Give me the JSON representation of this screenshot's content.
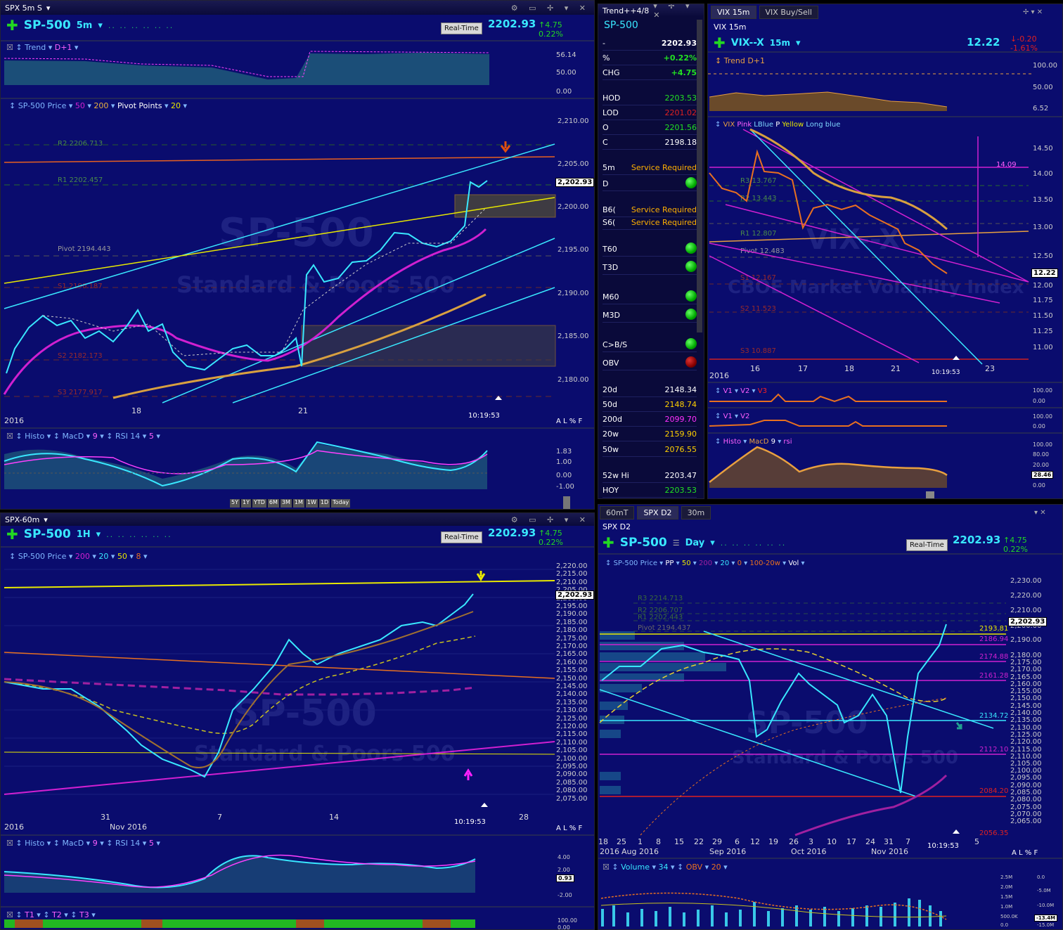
{
  "p1": {
    "title": "SPX 5m S",
    "symbol": "SP-500",
    "tf": "5m",
    "realtime": "Real-Time",
    "price": "2202.93",
    "chg": "4.75",
    "pct": "0.22%",
    "trend_label": "Trend",
    "trend_d": "D+1",
    "trend_axis": [
      "56.14",
      "50.00",
      "0.00"
    ],
    "price_label": "SP-500 Price",
    "ma1": "50",
    "ma2": "200",
    "pp": "Pivot Points",
    "ppn": "20",
    "levels": [
      "R2 2206.713",
      "R1 2202.457",
      "Pivot 2194.443",
      "S1 2190.187",
      "S2 2182.173",
      "S3 2177.917"
    ],
    "yticks": [
      "2,210.00",
      "2,205.00",
      "2,200.00",
      "2,195.00",
      "2,190.00",
      "2,185.00",
      "2,180.00"
    ],
    "pricetag": "2,202.93",
    "wm1": "SP-500",
    "wm2": "Standard & Poors 500",
    "x": [
      "18",
      "21"
    ],
    "year": "2016",
    "time": "10:19:53",
    "alpf": "A L % F",
    "ind_label": "Histo",
    "macd": "MacD",
    "macdn": "9",
    "rsi": "RSI 14",
    "rsin": "5",
    "ind_axis": [
      "1.83",
      "1.00",
      "0.00",
      "-1.00"
    ],
    "ranges": [
      "5Y",
      "1Y",
      "YTD",
      "6M",
      "3M",
      "1M",
      "1W",
      "1D",
      "Today"
    ]
  },
  "p2": {
    "title": "Trend++4/8",
    "symbol": "SP-500",
    "rows": [
      {
        "k": "-",
        "v": "2202.93",
        "c": "#fff"
      },
      {
        "k": "%",
        "v": "+0.22%",
        "c": "#22e022"
      },
      {
        "k": "CHG",
        "v": "+4.75",
        "c": "#22e022"
      },
      {
        "k": "HOD",
        "v": "2203.53",
        "c": "#22e022"
      },
      {
        "k": "LOD",
        "v": "2201.02",
        "c": "#e02020"
      },
      {
        "k": "O",
        "v": "2201.56",
        "c": "#22e022"
      },
      {
        "k": "C",
        "v": "2198.18",
        "c": "#fff"
      },
      {
        "k": "5m",
        "v": "Service Required",
        "c": "#ffb000"
      },
      {
        "k": "D",
        "v": "",
        "c": ""
      },
      {
        "k": "B6(",
        "v": "Service Required",
        "c": "#ffb000"
      },
      {
        "k": "S6(",
        "v": "Service Required",
        "c": "#ffb000"
      },
      {
        "k": "T60",
        "v": "",
        "c": ""
      },
      {
        "k": "T3D",
        "v": "",
        "c": ""
      },
      {
        "k": "M60",
        "v": "",
        "c": ""
      },
      {
        "k": "M3D",
        "v": "",
        "c": ""
      },
      {
        "k": "C>B/S",
        "v": "",
        "c": ""
      },
      {
        "k": "OBV",
        "v": "",
        "c": ""
      },
      {
        "k": "20d",
        "v": "2148.34",
        "c": "#fff"
      },
      {
        "k": "50d",
        "v": "2148.74",
        "c": "#ffd000"
      },
      {
        "k": "200d",
        "v": "2099.70",
        "c": "#ff30ff"
      },
      {
        "k": "20w",
        "v": "2159.90",
        "c": "#ffd000"
      },
      {
        "k": "50w",
        "v": "2076.55",
        "c": "#ffd000"
      },
      {
        "k": "52w Hi",
        "v": "2203.47",
        "c": "#fff"
      },
      {
        "k": "HOY",
        "v": "2203.53",
        "c": "#22e022"
      }
    ]
  },
  "p3": {
    "tab1": "VIX 15m",
    "tab2": "VIX Buy/Sell",
    "sub": "VIX 15m",
    "symbol": "VIX--X",
    "tf": "15m",
    "price": "12.22",
    "chg": "-0.20",
    "pct": "-1.61%",
    "trend": "Trend",
    "trendd": "D+1",
    "trend_axis": [
      "100.00",
      "50.00",
      "6.52"
    ],
    "legend": [
      "VIX",
      "Pink",
      "LBlue",
      "P",
      "Yellow",
      "Long blue"
    ],
    "levels": [
      "R3 13.767",
      "R2 13.443",
      "R1 12.807",
      "Pivot 12.483",
      "S1 12.167",
      "S2 11.523",
      "S3 10.887"
    ],
    "yticks": [
      "14.50",
      "14.00",
      "13.50",
      "13.00",
      "12.50",
      "12.00",
      "11.75",
      "11.50",
      "11.25",
      "11.00"
    ],
    "box": "14.09",
    "pricetag": "12.22",
    "wm1": "VIX--X",
    "wm2": "CBOE Market Volatility Index",
    "x": [
      "16",
      "17",
      "18",
      "21",
      "23"
    ],
    "year": "2016",
    "time": "10:19:53",
    "v1": "V1",
    "v2": "V2",
    "v3": "V3",
    "histo": "Histo",
    "macd": "MacD",
    "macdn": "9",
    "rsi": "rsi",
    "sub_axis": [
      "100.00",
      "0.00"
    ],
    "ind_axis": [
      "100.00",
      "80.00",
      "20.00",
      "28.46",
      "0.00"
    ]
  },
  "p4": {
    "title": "SPX-60m",
    "symbol": "SP-500",
    "tf": "1H",
    "realtime": "Real-Time",
    "price": "2202.93",
    "chg": "4.75",
    "pct": "0.22%",
    "price_label": "SP-500 Price",
    "ma1": "200",
    "ma2": "20",
    "ma3": "50",
    "ma4": "8",
    "yticks": [
      "2,220.00",
      "2,215.00",
      "2,210.00",
      "2,205.00",
      "2,200.00",
      "2,195.00",
      "2,190.00",
      "2,185.00",
      "2,180.00",
      "2,175.00",
      "2,170.00",
      "2,165.00",
      "2,160.00",
      "2,155.00",
      "2,150.00",
      "2,145.00",
      "2,140.00",
      "2,135.00",
      "2,130.00",
      "2,125.00",
      "2,120.00",
      "2,115.00",
      "2,110.00",
      "2,105.00",
      "2,100.00",
      "2,095.00",
      "2,090.00",
      "2,085.00",
      "2,080.00",
      "2,075.00"
    ],
    "pricetag": "2,202.93",
    "wm1": "SP-500",
    "wm2": "Standard & Poors 500",
    "x": [
      "31",
      "7",
      "14",
      "28"
    ],
    "month": "Nov 2016",
    "year": "2016",
    "time": "10:19:53",
    "histo": "Histo",
    "macd": "MacD",
    "macdn": "9",
    "rsi": "RSI 14",
    "rsin": "5",
    "ind_axis": [
      "4.00",
      "2.00",
      "0.93",
      "-2.00"
    ],
    "t1": "T1",
    "t2": "T2",
    "t3": "T3",
    "t_axis": [
      "100.00",
      "0.00"
    ]
  },
  "p5": {
    "tab1": "60mT",
    "tab2": "SPX D2",
    "tab3": "30m",
    "sub": "SPX D2",
    "symbol": "SP-500",
    "tf": "Day",
    "realtime": "Real-Time",
    "price": "2202.93",
    "chg": "4.75",
    "pct": "0.22%",
    "price_label": "SP-500 Price",
    "pp": "PP",
    "ma1": "50",
    "ma2": "200",
    "ma3": "20",
    "ma4": "0",
    "ma5": "100-20w",
    "vol": "Vol",
    "levels": [
      "R3 2214.713",
      "R2 2206.707",
      "R1 2202.443",
      "Pivot 2194.437"
    ],
    "hlines": [
      "2193.81",
      "2186.94",
      "2174.88",
      "2161.28",
      "2134.72",
      "2112.10",
      "2084.20",
      "2056.35"
    ],
    "yticks": [
      "2,230.00",
      "2,220.00",
      "2,210.00",
      "2,200.00",
      "2,190.00",
      "2,180.00",
      "2,175.00",
      "2,170.00",
      "2,165.00",
      "2,160.00",
      "2,155.00",
      "2,150.00",
      "2,145.00",
      "2,140.00",
      "2,135.00",
      "2,130.00",
      "2,125.00",
      "2,120.00",
      "2,115.00",
      "2,110.00",
      "2,105.00",
      "2,100.00",
      "2,095.00",
      "2,090.00",
      "2,085.00",
      "2,080.00",
      "2,075.00",
      "2,070.00",
      "2,065.00"
    ],
    "pricetag": "2,202.93",
    "wm1": "SP-500",
    "wm2": "Standard & Poors 500",
    "x": [
      "18",
      "25",
      "1",
      "8",
      "15",
      "22",
      "29",
      "6",
      "12",
      "19",
      "26",
      "3",
      "10",
      "17",
      "24",
      "31",
      "7",
      "5"
    ],
    "months": [
      "2016",
      "Aug 2016",
      "Sep 2016",
      "Oct 2016",
      "Nov 2016"
    ],
    "time": "10:19:53",
    "volume": "Volume",
    "voln": "34",
    "obv": "OBV",
    "obvn": "20",
    "vol_axis": [
      "2.5M",
      "2.0M",
      "1.5M",
      "1.0M",
      "500.0K",
      "0.0"
    ],
    "obv_axis": [
      "0.0",
      "-5.0M",
      "-10.0M",
      "-13.4M",
      "-15.0M"
    ]
  },
  "colors": {
    "bg": "#0a0c6e",
    "cyan": "#39e8ff",
    "magenta": "#d020d0",
    "yellow": "#e8e800",
    "orange": "#e89020",
    "green": "#22d822",
    "red": "#e02020"
  }
}
